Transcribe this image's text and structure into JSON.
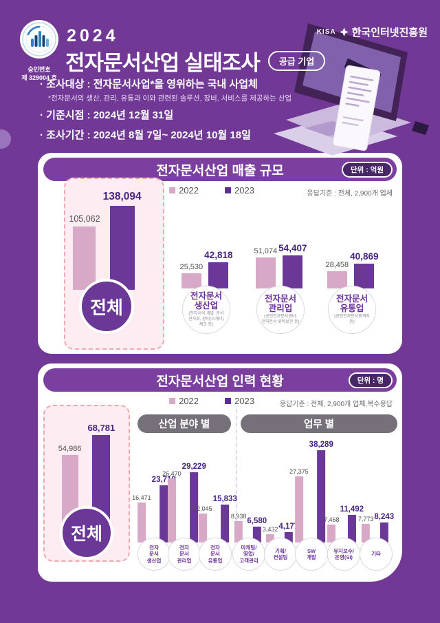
{
  "header": {
    "approval_line1": "승인번호",
    "approval_line2": "제 329004 호",
    "year": "2024",
    "title": "전자문서산업 실태조사",
    "supply_badge": "공급 기업",
    "org_abbr": "KISA",
    "org_name": "한국인터넷진흥원",
    "bullet_target": "· 조사대상 : 전자문서사업*을 영위하는 국내 사업체",
    "bullet_target_note": "*전자문서의 생산, 관리, 유통과 이와 관련된 솔루션, 장비, 서비스를 제공하는 산업",
    "bullet_base": "· 기준시점 : 2024년 12월 31일",
    "bullet_period": "· 조사기간 : 2024년 8월 7일~ 2024년 10월 18일"
  },
  "legend": {
    "y2022": "2022",
    "y2023": "2023"
  },
  "sales": {
    "title": "전자문서산업 매출 규모",
    "unit": "단위 : 억원",
    "respondent": "응답기준 : 전체, 2,900개 업체",
    "total": {
      "name": "전체",
      "v2022": "105,062",
      "v2023": "138,094"
    },
    "charts": [
      {
        "name": "전자문서\n생산업",
        "sub": "(전자서식 개발, 문서\n전자화, 장비(스캐너)\n제조 등)",
        "v2022": "25,530",
        "v2023": "42,818"
      },
      {
        "name": "전자문서\n관리업",
        "sub": "(공인전자문서센터,\n전자문서 위탁보관 등)",
        "v2022": "51,074",
        "v2023": "54,407"
      },
      {
        "name": "전자문서\n유통업",
        "sub": "(공인전자문서중계자\n등)",
        "v2022": "28,458",
        "v2023": "40,869"
      }
    ]
  },
  "hr": {
    "title": "전자문서산업 인력 현황",
    "unit": "단위 : 명",
    "respondent": "응답기준 : 전체, 2,900개 업체,복수응답",
    "total": {
      "name": "전체",
      "v2022": "54,986",
      "v2023": "68,781"
    },
    "group_sector": {
      "title": "산업 분야 별",
      "charts": [
        {
          "name": "전자\n문서\n생산업",
          "v2022": "16,471",
          "v2023": "23,718"
        },
        {
          "name": "전자\n문서\n관리업",
          "v2022": "26,470",
          "v2023": "29,229"
        },
        {
          "name": "전자\n문서\n유통업",
          "v2022": "12,045",
          "v2023": "15,833"
        }
      ]
    },
    "group_task": {
      "title": "업무 별",
      "charts": [
        {
          "name": "마케팅/\n영업/\n고객관리",
          "v2022": "8,938",
          "v2023": "6,580"
        },
        {
          "name": "기획/\n컨설팅",
          "v2022": "3,432",
          "v2023": "4,177"
        },
        {
          "name": "SW\n개발",
          "v2022": "27,375",
          "v2023": "38,289"
        },
        {
          "name": "유지보수/\n운영(SI)",
          "v2022": "7,468",
          "v2023": "11,492"
        },
        {
          "name": "기타",
          "v2022": "7,773",
          "v2023": "8,243"
        }
      ]
    }
  },
  "colors": {
    "background": "#713896",
    "bar_2022": "#d7a9c7",
    "bar_2023": "#6b3897",
    "pill": "#7b3fa0"
  },
  "chart_data": [
    {
      "type": "bar",
      "title": "전자문서산업 매출 규모",
      "unit": "억원",
      "respondent_base": "전체, 2,900개 업체",
      "categories": [
        "전체",
        "전자문서 생산업",
        "전자문서 관리업",
        "전자문서 유통업"
      ],
      "series": [
        {
          "name": "2022",
          "values": [
            105062,
            25530,
            51074,
            28458
          ]
        },
        {
          "name": "2023",
          "values": [
            138094,
            42818,
            54407,
            40869
          ]
        }
      ],
      "legend_position": "top",
      "grid": false
    },
    {
      "type": "bar",
      "title": "전자문서산업 인력 현황",
      "unit": "명",
      "respondent_base": "전체, 2,900개 업체, 복수응답",
      "categories": [
        "전체",
        "전자문서 생산업",
        "전자문서 관리업",
        "전자문서 유통업",
        "마케팅/영업/고객관리",
        "기획/컨설팅",
        "SW 개발",
        "유지보수/운영(SI)",
        "기타"
      ],
      "series": [
        {
          "name": "2022",
          "values": [
            54986,
            16471,
            26470,
            12045,
            8938,
            3432,
            27375,
            7468,
            7773
          ]
        },
        {
          "name": "2023",
          "values": [
            68781,
            23718,
            29229,
            15833,
            6580,
            4177,
            38289,
            11492,
            8243
          ]
        }
      ],
      "group_labels": [
        "산업 분야 별",
        "업무 별"
      ],
      "legend_position": "top",
      "grid": false
    }
  ]
}
